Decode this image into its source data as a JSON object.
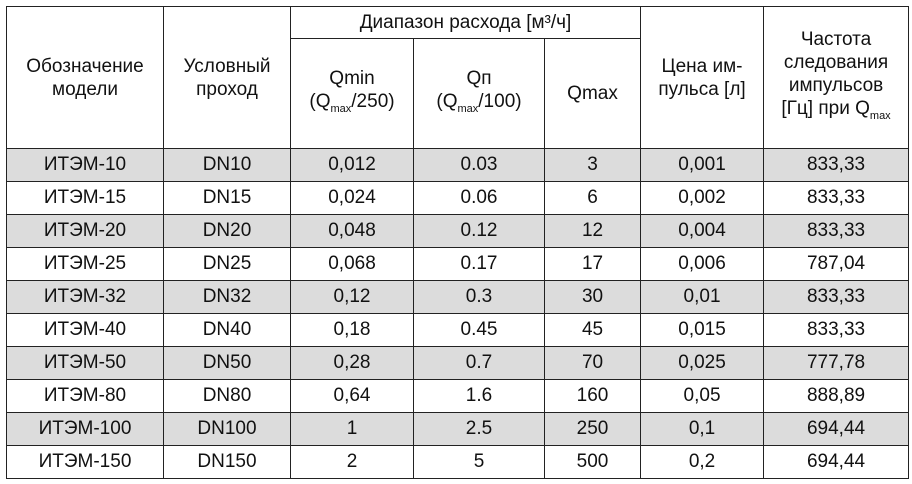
{
  "header": {
    "group": "Диапазон расхода [м³/ч]",
    "columns": [
      {
        "lines": [
          "Обозначение",
          "модели"
        ]
      },
      {
        "lines": [
          "Условный",
          "проход"
        ]
      },
      {
        "label": "Qmin",
        "formula": [
          "(Q",
          "max",
          "/250)"
        ]
      },
      {
        "label": "Qп",
        "formula": [
          "(Q",
          "max",
          "/100)"
        ]
      },
      {
        "label": "Qmax"
      },
      {
        "lines": [
          "Цена им-",
          "пульса [л]"
        ]
      },
      {
        "lines": [
          "Частота",
          "следования",
          "импульсов",
          "[Гц] при Q"
        ],
        "sub": "max"
      }
    ]
  },
  "rows": [
    [
      "ИТЭМ-10",
      "DN10",
      "0,012",
      "0.03",
      "3",
      "0,001",
      "833,33"
    ],
    [
      "ИТЭМ-15",
      "DN15",
      "0,024",
      "0.06",
      "6",
      "0,002",
      "833,33"
    ],
    [
      "ИТЭМ-20",
      "DN20",
      "0,048",
      "0.12",
      "12",
      "0,004",
      "833,33"
    ],
    [
      "ИТЭМ-25",
      "DN25",
      "0,068",
      "0.17",
      "17",
      "0,006",
      "787,04"
    ],
    [
      "ИТЭМ-32",
      "DN32",
      "0,12",
      "0.3",
      "30",
      "0,01",
      "833,33"
    ],
    [
      "ИТЭМ-40",
      "DN40",
      "0,18",
      "0.45",
      "45",
      "0,015",
      "833,33"
    ],
    [
      "ИТЭМ-50",
      "DN50",
      "0,28",
      "0.7",
      "70",
      "0,025",
      "777,78"
    ],
    [
      "ИТЭМ-80",
      "DN80",
      "0,64",
      "1.6",
      "160",
      "0,05",
      "888,89"
    ],
    [
      "ИТЭМ-100",
      "DN100",
      "1",
      "2.5",
      "250",
      "0,1",
      "694,44"
    ],
    [
      "ИТЭМ-150",
      "DN150",
      "2",
      "5",
      "500",
      "0,2",
      "694,44"
    ]
  ]
}
